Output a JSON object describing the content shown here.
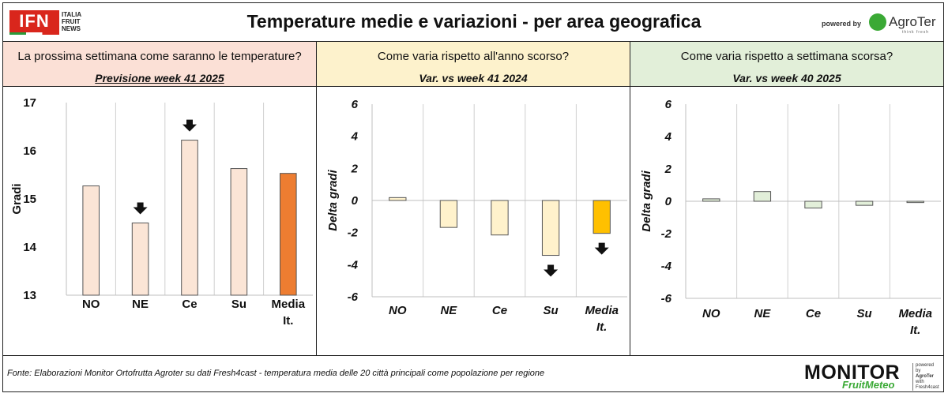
{
  "header": {
    "title": "Temperature medie e variazioni - per area geografica",
    "ifn_logo": "IFN",
    "ifn_sub": [
      "ITALIA",
      "FRUIT",
      "NEWS"
    ],
    "powered_by": "powered by",
    "agroter_logo": "AgroTer",
    "agroter_tag": "think fresh"
  },
  "panels": [
    {
      "question": "La prossima settimana come saranno le temperature?",
      "subtitle": "Previsione week 41 2025",
      "bg": "#fbe0d6"
    },
    {
      "question": "Come varia rispetto all'anno scorso?",
      "subtitle": "Var. vs week 41 2024",
      "bg": "#fdf2cc"
    },
    {
      "question": "Come varia rispetto a settimana scorsa?",
      "subtitle": "Var. vs week 40 2025",
      "bg": "#e2efd9"
    }
  ],
  "chart_data": [
    {
      "type": "bar",
      "categories": [
        "NO",
        "NE",
        "Ce",
        "Su",
        "Media It."
      ],
      "values": [
        15.27,
        14.5,
        16.22,
        15.63,
        15.53
      ],
      "ylabel": "Gradi",
      "ylim": [
        13,
        17
      ],
      "yticks": [
        13,
        14,
        15,
        16,
        17
      ],
      "colors": [
        "#fbe5d6",
        "#fbe5d6",
        "#fbe5d6",
        "#fbe5d6",
        "#ed7d31"
      ],
      "arrows_down": [
        "NE",
        "Ce"
      ],
      "grid": "vertical"
    },
    {
      "type": "bar",
      "categories": [
        "NO",
        "NE",
        "Ce",
        "Su",
        "Media It."
      ],
      "values": [
        0.18,
        -1.68,
        -2.15,
        -3.42,
        -2.05
      ],
      "ylabel": "Delta gradi",
      "ylim": [
        -6,
        6
      ],
      "yticks": [
        -6,
        -4,
        -2,
        0,
        2,
        4,
        6
      ],
      "colors": [
        "#fff2cc",
        "#fff2cc",
        "#fff2cc",
        "#fff2cc",
        "#ffc000"
      ],
      "arrows_down": [
        "Su",
        "Media It."
      ],
      "grid": "vertical"
    },
    {
      "type": "bar",
      "categories": [
        "NO",
        "NE",
        "Ce",
        "Su",
        "Media It."
      ],
      "values": [
        0.15,
        0.6,
        -0.42,
        -0.25,
        -0.08
      ],
      "ylabel": "Delta gradi",
      "ylim": [
        -6,
        6
      ],
      "yticks": [
        -6,
        -4,
        -2,
        0,
        2,
        4,
        6
      ],
      "colors": [
        "#e2efd9",
        "#e2efd9",
        "#e2efd9",
        "#e2efd9",
        "#e2efd9"
      ],
      "arrows_down": [],
      "grid": "vertical"
    }
  ],
  "footer": {
    "source": "Fonte: Elaborazioni Monitor Ortofrutta Agroter su dati Fresh4cast - temperatura media delle 20 città principali come popolazione per regione",
    "monitor_logo": "MONITOR",
    "fruitmeteo": "FruitMeteo",
    "side": [
      "powered",
      "by",
      "AgroTer",
      "with",
      "Fresh4cast"
    ]
  }
}
